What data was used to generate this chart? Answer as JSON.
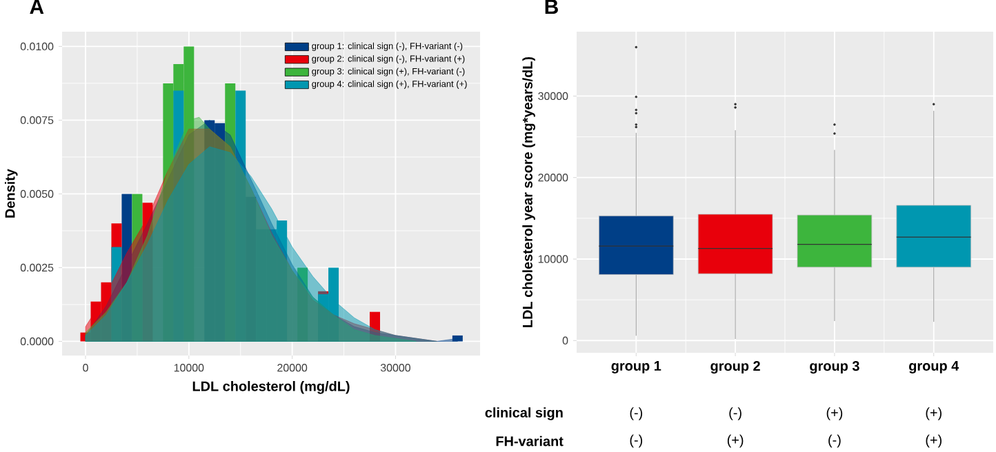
{
  "chart_data": [
    {
      "type": "histogram",
      "title": "A",
      "xlabel": "LDL cholesterol (mg/dL)",
      "ylabel": "Density",
      "bins": [
        -500,
        500,
        1500,
        2500,
        3500,
        4500,
        5500,
        6500,
        7500,
        8500,
        9500,
        10500,
        11500,
        12500,
        13500,
        14500,
        15500,
        16500,
        17500,
        18500,
        19500,
        20500,
        21500,
        22500,
        23500,
        24500,
        25500,
        26500,
        27500,
        28500,
        29500,
        30500,
        31500,
        32500,
        33500,
        34500,
        35500,
        36500
      ],
      "series": [
        {
          "name": "group 1: clinical sign (-), FH-variant (-)",
          "color": "#003f87",
          "values": [
            null,
            null,
            null,
            null,
            0.005,
            null,
            null,
            null,
            null,
            null,
            null,
            null,
            0.0075,
            0.0074,
            null,
            null,
            0.0049,
            null,
            null,
            null,
            null,
            null,
            null,
            null,
            null,
            null,
            null,
            null,
            null,
            null,
            null,
            null,
            null,
            null,
            null,
            null,
            0.0002
          ]
        },
        {
          "name": "group 2: clinical sign (-), FH-variant (+)",
          "color": "#e8000b",
          "values": [
            0.0003,
            0.00135,
            0.002,
            0.004,
            null,
            null,
            0.0047,
            null,
            null,
            null,
            null,
            null,
            null,
            null,
            null,
            null,
            null,
            null,
            null,
            null,
            null,
            null,
            null,
            0.0017,
            null,
            null,
            null,
            null,
            0.001,
            null,
            null,
            null,
            null,
            null,
            null,
            null,
            null
          ]
        },
        {
          "name": "group 3: clinical sign (+), FH-variant (-)",
          "color": "#3db53d",
          "values": [
            null,
            null,
            null,
            null,
            null,
            0.005,
            null,
            null,
            0.00875,
            0.0094,
            0.01,
            null,
            null,
            null,
            0.00875,
            null,
            null,
            null,
            null,
            null,
            null,
            0.0025,
            null,
            null,
            null,
            null,
            null,
            null,
            null,
            null,
            null,
            null,
            null,
            null,
            null,
            null,
            null
          ]
        },
        {
          "name": "group 4: clinical sign (+), FH-variant (+)",
          "color": "#0097b0",
          "values": [
            null,
            null,
            null,
            0.0032,
            null,
            null,
            null,
            null,
            null,
            0.0085,
            null,
            null,
            null,
            null,
            null,
            0.0085,
            null,
            0.0038,
            0.0038,
            0.0041,
            null,
            null,
            null,
            0.0016,
            0.0025,
            null,
            null,
            null,
            null,
            null,
            null,
            null,
            null,
            null,
            null,
            null,
            null
          ]
        },
        {
          "type": "area",
          "color": "#003f87",
          "x": [
            0,
            2000,
            4000,
            6000,
            8000,
            10000,
            12000,
            14000,
            16000,
            18000,
            20000,
            22000,
            24000,
            26000,
            28000,
            30000,
            32000,
            34000,
            36000
          ],
          "values": [
            0.0002,
            0.0012,
            0.0026,
            0.004,
            0.0055,
            0.007,
            0.0075,
            0.007,
            0.0055,
            0.004,
            0.0026,
            0.0015,
            0.0009,
            0.0005,
            0.0003,
            0.0002,
            0.0001,
            0.0,
            0.0001
          ]
        },
        {
          "type": "area",
          "color": "#e8000b",
          "x": [
            0,
            2000,
            4000,
            6000,
            8000,
            10000,
            12000,
            14000,
            16000,
            18000,
            20000,
            22000,
            24000,
            26000,
            28000,
            30000,
            32000,
            34000
          ],
          "values": [
            0.0005,
            0.0016,
            0.003,
            0.0042,
            0.0058,
            0.0072,
            0.0072,
            0.0066,
            0.0052,
            0.0037,
            0.0024,
            0.0014,
            0.0009,
            0.0006,
            0.0004,
            0.0002,
            0.0001,
            0.0
          ]
        },
        {
          "type": "area",
          "color": "#3db53d",
          "x": [
            0,
            2000,
            4000,
            6000,
            8000,
            10000,
            11000,
            12000,
            14000,
            16000,
            18000,
            20000,
            22000,
            24000,
            26000,
            28000,
            30000,
            32000
          ],
          "values": [
            0.0003,
            0.001,
            0.002,
            0.0036,
            0.0058,
            0.0075,
            0.0076,
            0.0072,
            0.0066,
            0.0052,
            0.0036,
            0.0024,
            0.0015,
            0.0009,
            0.0004,
            0.0002,
            0.0001,
            0.0
          ]
        },
        {
          "type": "area",
          "color": "#0097b0",
          "x": [
            0,
            2000,
            4000,
            6000,
            8000,
            10000,
            12000,
            14000,
            16000,
            18000,
            20000,
            22000,
            24000,
            26000,
            28000,
            30000,
            32000,
            34000
          ],
          "values": [
            0.0002,
            0.0009,
            0.002,
            0.0033,
            0.0048,
            0.006,
            0.0066,
            0.0064,
            0.0056,
            0.0045,
            0.0032,
            0.0022,
            0.0014,
            0.0008,
            0.0004,
            0.0002,
            0.0001,
            0.0
          ]
        }
      ],
      "xlim": [
        -2270,
        38180
      ],
      "ylim": [
        -0.00048,
        0.0105
      ],
      "xticks": [
        0,
        10000,
        20000,
        30000
      ],
      "yticks": [
        {
          "value": 0,
          "label": "0.0000"
        },
        {
          "value": 0.0025,
          "label": "0.0025"
        },
        {
          "value": 0.005,
          "label": "0.0050"
        },
        {
          "value": 0.0075,
          "label": "0.0075"
        },
        {
          "value": 0.01,
          "label": "0.0100"
        }
      ],
      "grid": true,
      "legend": "top right"
    },
    {
      "type": "box",
      "title": "B",
      "ylabel": "LDL cholesterol year score (mg*years/dL)",
      "categories": [
        "group 1",
        "group 2",
        "group 3",
        "group 4"
      ],
      "colors": [
        "#003f87",
        "#e8000b",
        "#3db53d",
        "#0097b0"
      ],
      "boxes": [
        {
          "low": 600,
          "q1": 8100,
          "median": 11600,
          "q3": 15300,
          "high": 25500,
          "outliers": [
            36000,
            29900,
            28300,
            27900,
            26500,
            26200
          ]
        },
        {
          "low": 200,
          "q1": 8200,
          "median": 11300,
          "q3": 15500,
          "high": 25800,
          "outliers": [
            29000,
            28600
          ]
        },
        {
          "low": 2400,
          "q1": 9000,
          "median": 11800,
          "q3": 15400,
          "high": 23400,
          "outliers": [
            26500,
            25400
          ]
        },
        {
          "low": 2300,
          "q1": 9000,
          "median": 12700,
          "q3": 16600,
          "high": 28200,
          "outliers": [
            29000
          ]
        }
      ],
      "ylim": [
        -1500,
        37900
      ],
      "yticks": [
        0,
        10000,
        20000,
        30000
      ],
      "grid": true,
      "annotations": [
        "clinical sign",
        "(-)",
        "(-)",
        "(+)",
        "(+)",
        "FH-variant",
        "(-)",
        "(+)",
        "(-)",
        "(+)"
      ]
    }
  ]
}
